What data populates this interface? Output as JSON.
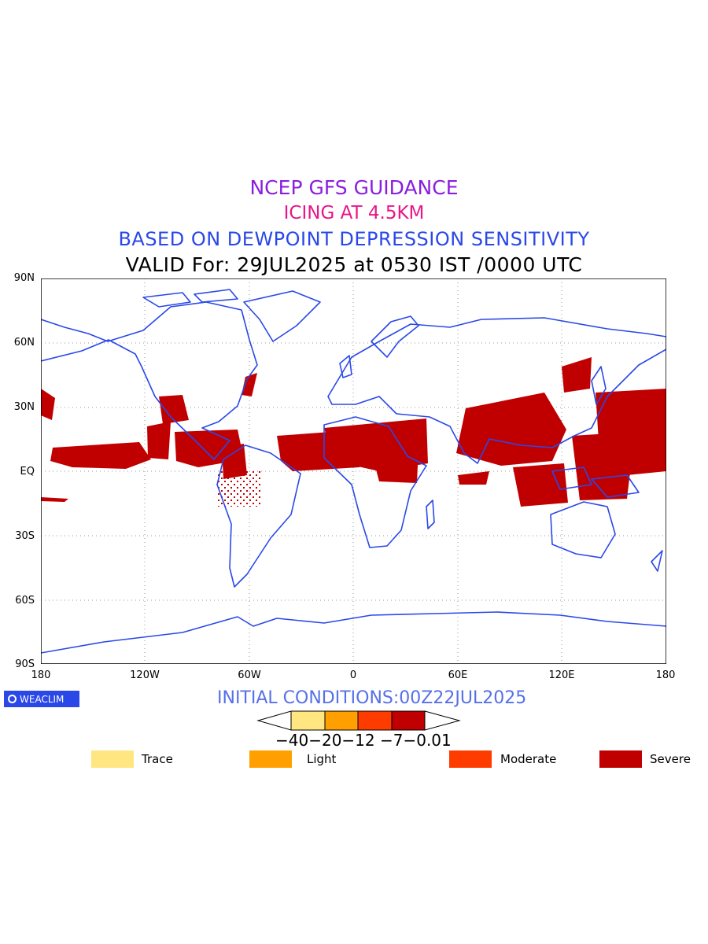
{
  "titles": {
    "line1": "NCEP GFS GUIDANCE",
    "line2": "ICING AT 4.5KM",
    "line3": "BASED ON DEWPOINT DEPRESSION SENSITIVITY",
    "line4": "VALID For: 29JUL2025 at 0530 IST /0000 UTC"
  },
  "axes": {
    "lat_labels": [
      "90N",
      "60N",
      "30N",
      "EQ",
      "30S",
      "60S",
      "90S"
    ],
    "lon_labels": [
      "180",
      "120W",
      "60W",
      "0",
      "60E",
      "120E",
      "180"
    ]
  },
  "logo": {
    "text": "WEACLIM"
  },
  "initial_conditions": "INITIAL CONDITIONS:00Z22JUL2025",
  "colorbar": {
    "ticks": "−40−20−12 −7−0.01",
    "colors": [
      "#ffe680",
      "#ffa000",
      "#ff3c00",
      "#c00000"
    ]
  },
  "legend": [
    {
      "label": "Trace",
      "color": "#ffe680"
    },
    {
      "label": "Light",
      "color": "#ffa000"
    },
    {
      "label": "Moderate",
      "color": "#ff3c00"
    },
    {
      "label": "Severe",
      "color": "#c00000"
    }
  ],
  "colors": {
    "coastline": "#2a48e8",
    "icing": "#c00000"
  }
}
